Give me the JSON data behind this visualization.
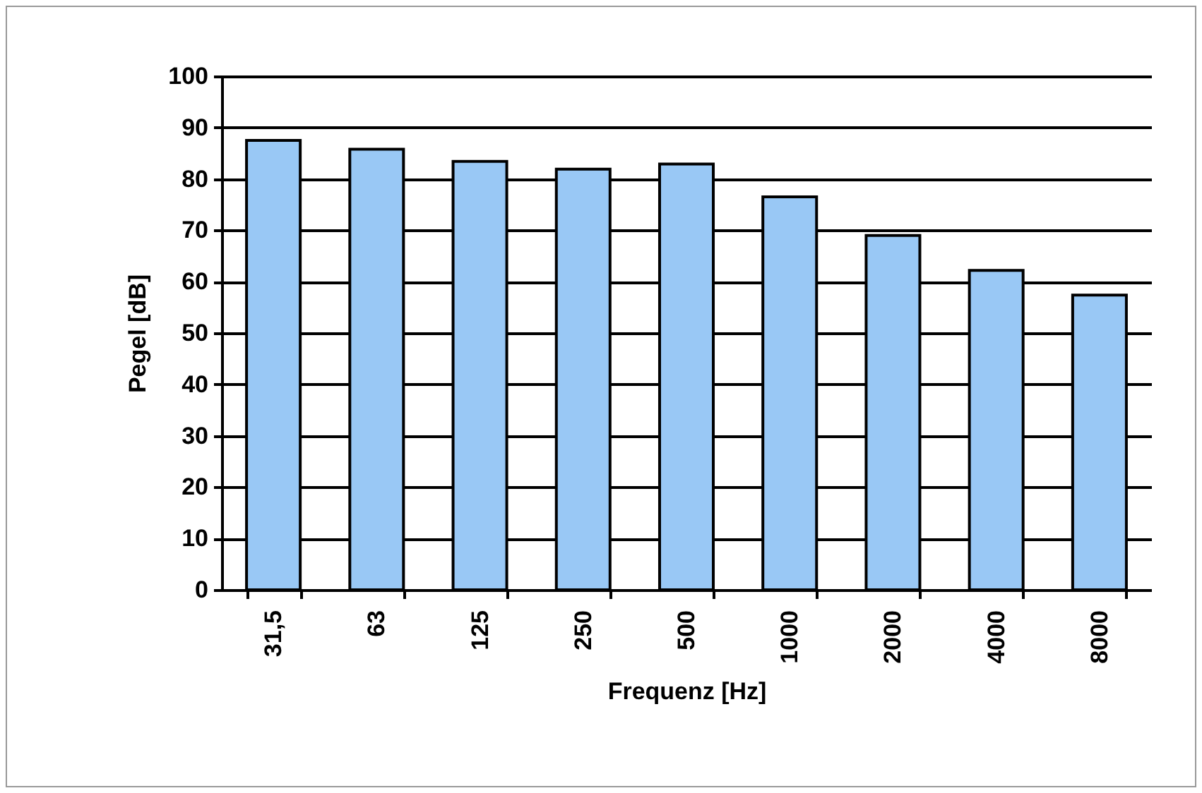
{
  "chart_data": {
    "type": "bar",
    "xlabel": "Frequenz [Hz]",
    "ylabel": "Pegel [dB]",
    "categories": [
      "31,5",
      "63",
      "125",
      "250",
      "500",
      "1000",
      "2000",
      "4000",
      "8000"
    ],
    "values": [
      87.5,
      85.8,
      83.4,
      81.9,
      82.9,
      76.5,
      69,
      62.2,
      57.4
    ],
    "color": "#99c8f5",
    "ylim": [
      0,
      100
    ],
    "yticks": [
      0,
      10,
      20,
      30,
      40,
      50,
      60,
      70,
      80,
      90,
      100
    ],
    "grid": "y"
  }
}
